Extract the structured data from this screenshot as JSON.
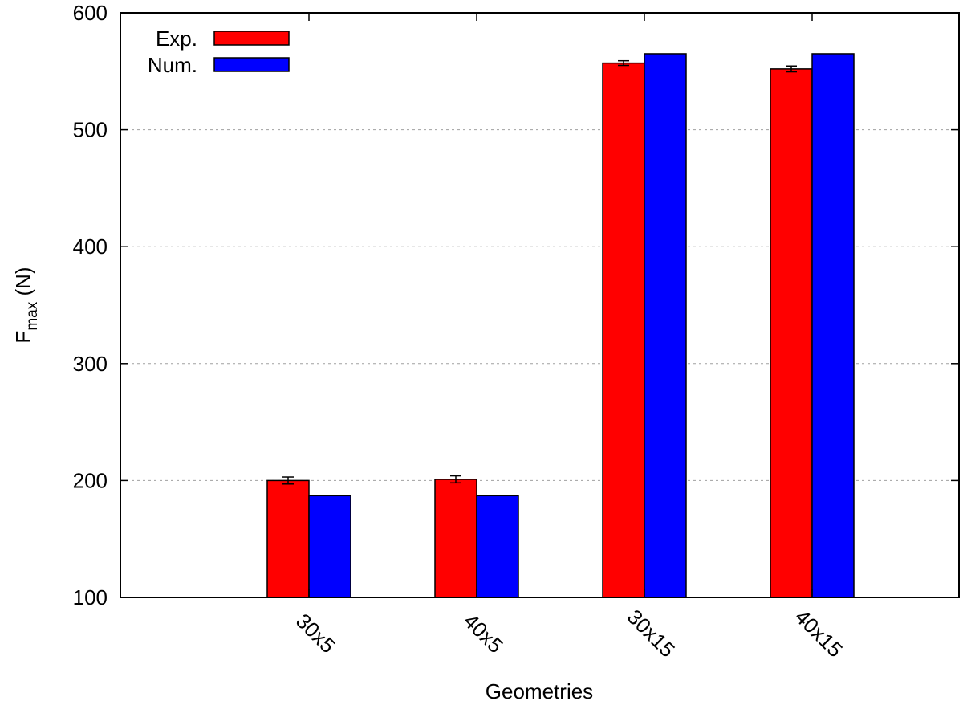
{
  "chart_data": {
    "type": "bar",
    "xlabel": "Geometries",
    "ylabel_main": "F",
    "ylabel_sub": "max",
    "ylabel_tail": " (N)",
    "ylim": [
      100,
      600
    ],
    "yticks": [
      100,
      200,
      300,
      400,
      500,
      600
    ],
    "categories": [
      "30x5",
      "40x5",
      "30x15",
      "40x15"
    ],
    "grid": {
      "y": true,
      "x": false
    },
    "legend_position": "top-left",
    "series": [
      {
        "name": "Exp.",
        "color": "#ff0000",
        "values": [
          200,
          201,
          557,
          552
        ],
        "errors": [
          3,
          3,
          2,
          2.5
        ]
      },
      {
        "name": "Num.",
        "color": "#0000ff",
        "values": [
          187,
          187,
          565,
          565
        ]
      }
    ]
  }
}
